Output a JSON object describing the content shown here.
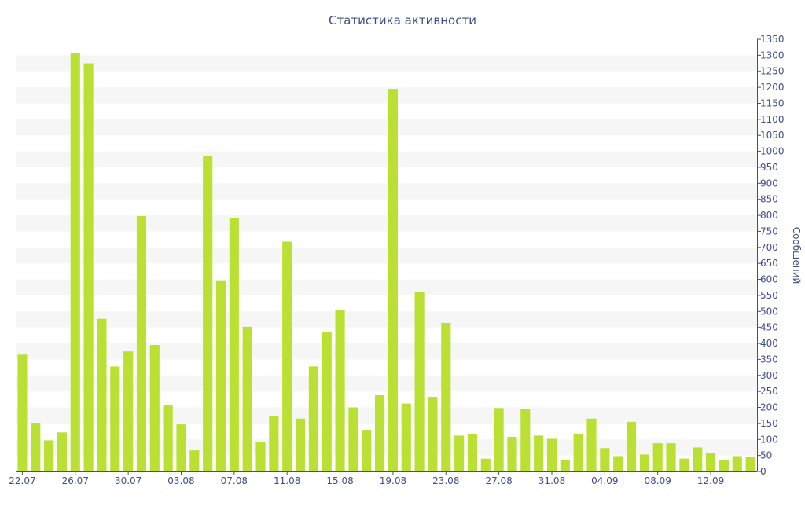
{
  "chart_data": {
    "type": "bar",
    "title": "Статистика активности",
    "ylabel": "Сообщений",
    "xlabel": "",
    "ylim": [
      0,
      1350
    ],
    "y_ticks": [
      0,
      50,
      100,
      150,
      200,
      250,
      300,
      350,
      400,
      450,
      500,
      550,
      600,
      650,
      700,
      750,
      800,
      850,
      900,
      950,
      1000,
      1050,
      1100,
      1150,
      1200,
      1250,
      1300,
      1350
    ],
    "y_axis_side": "right",
    "grid": "alternating horizontal bands",
    "bar_color": "#b9e032",
    "axis_color": "#3d4f8a",
    "band_color": "#f6f6f6",
    "categories": [
      "22.07",
      "23.07",
      "24.07",
      "25.07",
      "26.07",
      "27.07",
      "28.07",
      "29.07",
      "30.07",
      "31.07",
      "01.08",
      "02.08",
      "03.08",
      "04.08",
      "05.08",
      "06.08",
      "07.08",
      "08.08",
      "09.08",
      "10.08",
      "11.08",
      "12.08",
      "13.08",
      "14.08",
      "15.08",
      "16.08",
      "17.08",
      "18.08",
      "19.08",
      "20.08",
      "21.08",
      "22.08",
      "23.08",
      "24.08",
      "25.08",
      "26.08",
      "27.08",
      "28.08",
      "29.08",
      "30.08",
      "31.08",
      "01.09",
      "02.09",
      "03.09",
      "04.09",
      "05.09",
      "06.09",
      "07.09",
      "08.09",
      "09.09",
      "10.09",
      "11.09",
      "12.09",
      "13.09",
      "14.09",
      "15.09"
    ],
    "x_tick_labels": [
      "22.07",
      "26.07",
      "30.07",
      "03.08",
      "07.08",
      "11.08",
      "15.08",
      "19.08",
      "23.08",
      "27.08",
      "31.08",
      "04.09",
      "08.09",
      "12.09"
    ],
    "values": [
      365,
      152,
      97,
      122,
      1307,
      1275,
      477,
      328,
      375,
      798,
      395,
      206,
      147,
      66,
      985,
      597,
      792,
      452,
      91,
      172,
      718,
      165,
      328,
      435,
      505,
      200,
      130,
      238,
      1195,
      212,
      562,
      233,
      464,
      112,
      118,
      40,
      198,
      108,
      195,
      112,
      102,
      35,
      118,
      165,
      73,
      48,
      155,
      53,
      88,
      88,
      40,
      75,
      58,
      35,
      48,
      45
    ]
  }
}
